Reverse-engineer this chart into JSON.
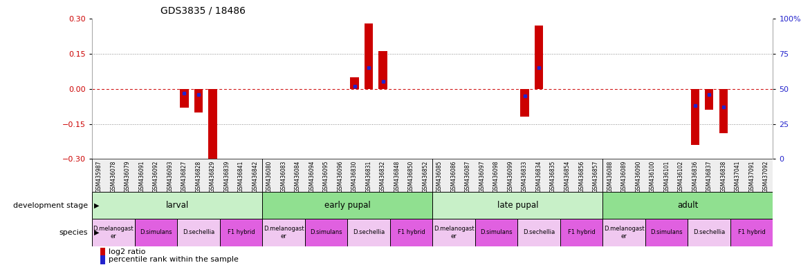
{
  "title": "GDS3835 / 18486",
  "ylim_left": [
    -0.3,
    0.3
  ],
  "ylim_right": [
    0,
    100
  ],
  "yticks_left": [
    -0.3,
    -0.15,
    0,
    0.15,
    0.3
  ],
  "yticks_right": [
    0,
    25,
    50,
    75,
    100
  ],
  "hline_dotted": [
    -0.15,
    0.15
  ],
  "samples": [
    "GSM435987",
    "GSM436078",
    "GSM436079",
    "GSM436091",
    "GSM436092",
    "GSM436093",
    "GSM436827",
    "GSM436828",
    "GSM436829",
    "GSM436839",
    "GSM436841",
    "GSM436842",
    "GSM436080",
    "GSM436083",
    "GSM436084",
    "GSM436094",
    "GSM436095",
    "GSM436096",
    "GSM436830",
    "GSM436831",
    "GSM436832",
    "GSM436848",
    "GSM436850",
    "GSM436852",
    "GSM436085",
    "GSM436086",
    "GSM436087",
    "GSM436097",
    "GSM436098",
    "GSM436099",
    "GSM436833",
    "GSM436834",
    "GSM436835",
    "GSM436854",
    "GSM436856",
    "GSM436857",
    "GSM436088",
    "GSM436089",
    "GSM436090",
    "GSM436100",
    "GSM436101",
    "GSM436102",
    "GSM436836",
    "GSM436837",
    "GSM436838",
    "GSM437041",
    "GSM437091",
    "GSM437092"
  ],
  "log2_values": [
    0,
    0,
    0,
    0,
    0,
    0,
    -0.08,
    -0.1,
    -0.3,
    0,
    0,
    0,
    0,
    0,
    0,
    0,
    0,
    0,
    0.05,
    0.28,
    0.16,
    0,
    0,
    0,
    0,
    0,
    0,
    0,
    0,
    0,
    -0.12,
    0.27,
    0,
    0,
    0,
    0,
    0,
    0,
    0,
    0,
    0,
    0,
    -0.24,
    -0.09,
    -0.19,
    0,
    0,
    0
  ],
  "percentile_values": [
    null,
    null,
    null,
    null,
    null,
    null,
    47,
    46,
    null,
    null,
    null,
    null,
    null,
    null,
    null,
    null,
    null,
    null,
    52,
    65,
    55,
    null,
    null,
    null,
    null,
    null,
    null,
    null,
    null,
    null,
    45,
    65,
    null,
    null,
    null,
    null,
    null,
    null,
    null,
    null,
    null,
    null,
    38,
    46,
    37,
    null,
    null,
    null
  ],
  "dev_stages": [
    {
      "label": "larval",
      "start": 0,
      "end": 12,
      "color": "#c8f0c8"
    },
    {
      "label": "early pupal",
      "start": 12,
      "end": 24,
      "color": "#90e090"
    },
    {
      "label": "late pupal",
      "start": 24,
      "end": 36,
      "color": "#c8f0c8"
    },
    {
      "label": "adult",
      "start": 36,
      "end": 48,
      "color": "#90e090"
    }
  ],
  "species_groups": [
    {
      "label": "D.melanogast\ner",
      "start": 0,
      "end": 3,
      "color": "#f0c8f0"
    },
    {
      "label": "D.simulans",
      "start": 3,
      "end": 6,
      "color": "#e060e0"
    },
    {
      "label": "D.sechellia",
      "start": 6,
      "end": 9,
      "color": "#f0c8f0"
    },
    {
      "label": "F1 hybrid",
      "start": 9,
      "end": 12,
      "color": "#e060e0"
    },
    {
      "label": "D.melanogast\ner",
      "start": 12,
      "end": 15,
      "color": "#f0c8f0"
    },
    {
      "label": "D.simulans",
      "start": 15,
      "end": 18,
      "color": "#e060e0"
    },
    {
      "label": "D.sechellia",
      "start": 18,
      "end": 21,
      "color": "#f0c8f0"
    },
    {
      "label": "F1 hybrid",
      "start": 21,
      "end": 24,
      "color": "#e060e0"
    },
    {
      "label": "D.melanogast\ner",
      "start": 24,
      "end": 27,
      "color": "#f0c8f0"
    },
    {
      "label": "D.simulans",
      "start": 27,
      "end": 30,
      "color": "#e060e0"
    },
    {
      "label": "D.sechellia",
      "start": 30,
      "end": 33,
      "color": "#f0c8f0"
    },
    {
      "label": "F1 hybrid",
      "start": 33,
      "end": 36,
      "color": "#e060e0"
    },
    {
      "label": "D.melanogast\ner",
      "start": 36,
      "end": 39,
      "color": "#f0c8f0"
    },
    {
      "label": "D.simulans",
      "start": 39,
      "end": 42,
      "color": "#e060e0"
    },
    {
      "label": "D.sechellia",
      "start": 42,
      "end": 45,
      "color": "#f0c8f0"
    },
    {
      "label": "F1 hybrid",
      "start": 45,
      "end": 48,
      "color": "#e060e0"
    }
  ],
  "bar_color": "#cc0000",
  "percentile_color": "#2222cc",
  "background_color": "#ffffff",
  "axis_left_color": "#cc0000",
  "axis_right_color": "#2222cc",
  "title_color": "#000000"
}
